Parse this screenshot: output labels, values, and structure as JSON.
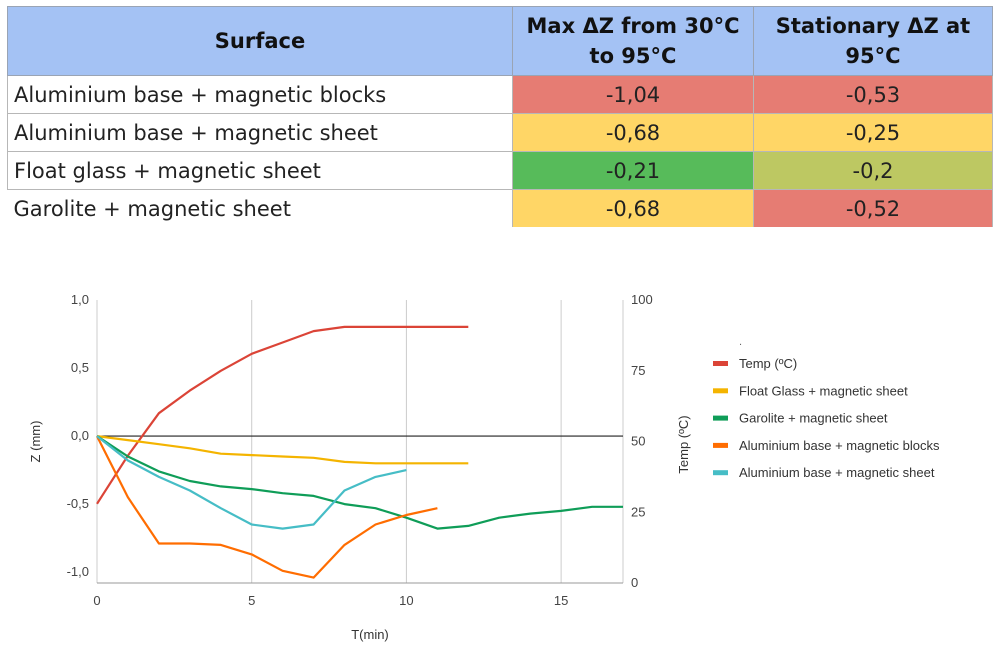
{
  "table": {
    "headers": [
      "Surface",
      "Max ΔZ from 30°C to 95°C",
      "Stationary ΔZ at 95°C"
    ],
    "rows": [
      {
        "surface": "Aluminium base + magnetic blocks",
        "max_dz": "-1,04",
        "stationary_dz": "-0,53",
        "max_color": "#e67c73",
        "stat_color": "#e67c73"
      },
      {
        "surface": "Aluminium base + magnetic sheet",
        "max_dz": "-0,68",
        "stationary_dz": "-0,25",
        "max_color": "#ffd666",
        "stat_color": "#ffd666"
      },
      {
        "surface": "Float glass + magnetic sheet",
        "max_dz": "-0,21",
        "stationary_dz": "-0,2",
        "max_color": "#57bb5a",
        "stat_color": "#bdc862"
      },
      {
        "surface": "Garolite + magnetic sheet",
        "max_dz": "-0,68",
        "stationary_dz": "-0,52",
        "max_color": "#ffd666",
        "stat_color": "#e67c73"
      }
    ]
  },
  "chart_data": {
    "type": "line",
    "xlabel": "T(min)",
    "ylabel": "Z (mm)",
    "y2label": "Temp (ºC)",
    "xlim": [
      0,
      17
    ],
    "ylim": [
      -1.08,
      1.0
    ],
    "y2lim": [
      0,
      100
    ],
    "x_ticks": [
      0,
      5,
      10,
      15
    ],
    "x_tick_labels": [
      "0",
      "5",
      "10",
      "15"
    ],
    "y_ticks": [
      -1.0,
      -0.5,
      0.0,
      0.5,
      1.0
    ],
    "y_tick_labels": [
      "-1,0",
      "-0,5",
      "0,0",
      "0,5",
      "1,0"
    ],
    "y2_ticks": [
      0,
      25,
      50,
      75,
      100
    ],
    "y2_tick_labels": [
      "0",
      "25",
      "50",
      "75",
      "100"
    ],
    "grid": "vertical",
    "legend_position": "right",
    "legend_header": ".",
    "series": [
      {
        "name": "Temp (ºC)",
        "axis": "right",
        "color": "#db4437",
        "x": [
          0,
          1,
          2,
          3,
          4,
          5,
          6,
          7,
          8,
          9,
          10,
          11,
          12
        ],
        "y": [
          28,
          45,
          60,
          68,
          75,
          81,
          85,
          89,
          90.5,
          90.5,
          90.5,
          90.5,
          90.5
        ]
      },
      {
        "name": "Float Glass + magnetic sheet",
        "axis": "left",
        "color": "#f4b400",
        "x": [
          0,
          1,
          2,
          3,
          4,
          5,
          6,
          7,
          8,
          9,
          10,
          11,
          12
        ],
        "y": [
          0,
          -0.03,
          -0.06,
          -0.09,
          -0.13,
          -0.14,
          -0.15,
          -0.16,
          -0.19,
          -0.2,
          -0.2,
          -0.2,
          -0.2
        ]
      },
      {
        "name": "Garolite + magnetic sheet",
        "axis": "left",
        "color": "#0f9d58",
        "x": [
          0,
          1,
          2,
          3,
          4,
          5,
          6,
          7,
          8,
          9,
          10,
          11,
          12,
          13,
          14,
          15,
          16,
          17
        ],
        "y": [
          0,
          -0.15,
          -0.26,
          -0.33,
          -0.37,
          -0.39,
          -0.42,
          -0.44,
          -0.5,
          -0.53,
          -0.6,
          -0.68,
          -0.66,
          -0.6,
          -0.57,
          -0.55,
          -0.52,
          -0.52
        ]
      },
      {
        "name": "Aluminium base + magnetic blocks",
        "axis": "left",
        "color": "#ff6d01",
        "x": [
          0,
          1,
          2,
          3,
          4,
          5,
          6,
          7,
          8,
          9,
          10,
          11
        ],
        "y": [
          0,
          -0.45,
          -0.79,
          -0.79,
          -0.8,
          -0.87,
          -0.99,
          -1.04,
          -0.8,
          -0.65,
          -0.58,
          -0.53
        ]
      },
      {
        "name": "Aluminium base + magnetic sheet",
        "axis": "left",
        "color": "#46bdc6",
        "x": [
          0,
          1,
          2,
          3,
          4,
          5,
          6,
          7,
          8,
          9,
          10
        ],
        "y": [
          0,
          -0.18,
          -0.3,
          -0.4,
          -0.53,
          -0.65,
          -0.68,
          -0.65,
          -0.4,
          -0.3,
          -0.25
        ]
      }
    ]
  }
}
